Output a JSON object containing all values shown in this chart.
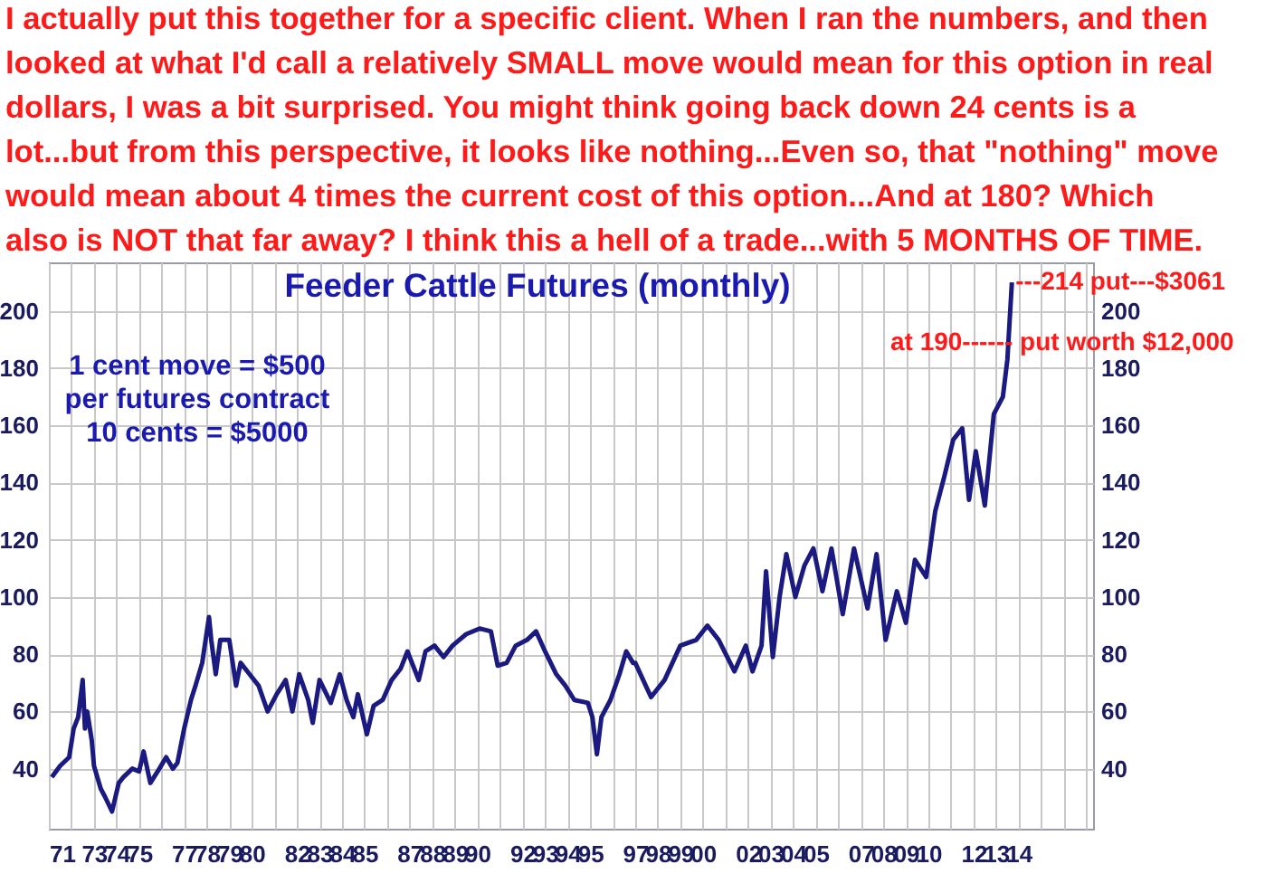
{
  "chart_data": {
    "type": "line",
    "title": "Feeder Cattle Futures (monthly)",
    "annotations": [
      "I actually put this together for a specific client. When I ran the numbers, and then\nlooked at what I'd call a relatively SMALL move would mean for this option in real\ndollars, I was a bit surprised. You might think going back down 24 cents is a\nlot...but from this perspective, it looks like nothing...Even so, that \"nothing\" move\nwould mean about 4 times the current cost of this option...And at 180? Which\nalso is NOT that far away? I think this a hell of a trade...with 5 MONTHS OF TIME.",
      "1 cent move = $500\nper futures contract\n10 cents = $5000",
      {
        "text": "---214 put---$3061",
        "x": 2013.7,
        "y": 210
      },
      {
        "text": "at 190------ put worth $12,000",
        "x": 2013.6,
        "y": 189
      }
    ],
    "x": [
      1971.13,
      1971.5,
      1971.9,
      1972.1,
      1972.3,
      1972.5,
      1972.6,
      1972.7,
      1972.9,
      1973.0,
      1973.3,
      1973.5,
      1973.8,
      1974.1,
      1974.3,
      1974.7,
      1975.0,
      1975.2,
      1975.5,
      1975.9,
      1976.2,
      1976.5,
      1976.7,
      1977.0,
      1977.3,
      1977.5,
      1977.8,
      1978.1,
      1978.2,
      1978.4,
      1978.6,
      1979.0,
      1979.3,
      1979.5,
      1979.9,
      1980.3,
      1980.7,
      1981.1,
      1981.5,
      1981.8,
      1982.1,
      1982.5,
      1982.7,
      1983.0,
      1983.5,
      1983.9,
      1984.2,
      1984.5,
      1984.7,
      1985.1,
      1985.4,
      1985.8,
      1986.2,
      1986.6,
      1986.9,
      1987.4,
      1987.7,
      1988.1,
      1988.5,
      1988.9,
      1989.5,
      1990.1,
      1990.6,
      1990.9,
      1991.3,
      1991.7,
      1992.2,
      1992.6,
      1993.0,
      1993.5,
      1993.9,
      1994.3,
      1994.9,
      1995.1,
      1995.3,
      1995.5,
      1995.9,
      1996.3,
      1996.6,
      1996.9,
      1997.0,
      1997.7,
      1998.3,
      1999.0,
      1999.7,
      2000.2,
      2000.7,
      2001.4,
      2001.9,
      2002.2,
      2002.6,
      2002.8,
      2003.1,
      2003.4,
      2003.7,
      2004.1,
      2004.5,
      2004.9,
      2005.3,
      2005.7,
      2006.2,
      2006.7,
      2007.3,
      2007.7,
      2008.1,
      2008.6,
      2009.0,
      2009.4,
      2009.9,
      2010.3,
      2010.7,
      2011.1,
      2011.5,
      2011.8,
      2012.1,
      2012.5,
      2012.9,
      2013.3,
      2013.5,
      2013.7
    ],
    "series": [
      {
        "color": "#1a1a80",
        "values": [
          37,
          41,
          44,
          54,
          58,
          71,
          54,
          60,
          50,
          41,
          33,
          30,
          25,
          35,
          37,
          40,
          39,
          46,
          35,
          40,
          44,
          40,
          42,
          54,
          64,
          69,
          77,
          93,
          85,
          73,
          85,
          85,
          69,
          77,
          73,
          69,
          60,
          66,
          71,
          60,
          73,
          64,
          56,
          71,
          63,
          73,
          64,
          58,
          66,
          52,
          62,
          64,
          71,
          75,
          81,
          71,
          81,
          83,
          79,
          83,
          87,
          89,
          88,
          76,
          77,
          83,
          85,
          88,
          81,
          73,
          69,
          64,
          63,
          58,
          45,
          58,
          64,
          73,
          81,
          77,
          77,
          65,
          71,
          83,
          85,
          90,
          85,
          74,
          83,
          74,
          83,
          109,
          79,
          100,
          115,
          100,
          111,
          117,
          102,
          117,
          94,
          117,
          96,
          115,
          85,
          102,
          91,
          113,
          107,
          130,
          142,
          155,
          159,
          134,
          151,
          132,
          164,
          170,
          183,
          210
        ]
      }
    ],
    "xlim": [
      1971,
      2017.3
    ],
    "xticks": [
      {
        "value": 1971,
        "label": "71"
      },
      {
        "value": 1972,
        "label": null
      },
      {
        "value": 1973,
        "label": "73"
      },
      {
        "value": 1974,
        "label": "74"
      },
      {
        "value": 1975,
        "label": "75"
      },
      {
        "value": 1976,
        "label": null
      },
      {
        "value": 1977,
        "label": "77"
      },
      {
        "value": 1978,
        "label": "78"
      },
      {
        "value": 1979,
        "label": "79"
      },
      {
        "value": 1980,
        "label": "80"
      },
      {
        "value": 1981,
        "label": null
      },
      {
        "value": 1982,
        "label": "82"
      },
      {
        "value": 1983,
        "label": "83"
      },
      {
        "value": 1984,
        "label": "84"
      },
      {
        "value": 1985,
        "label": "85"
      },
      {
        "value": 1986,
        "label": null
      },
      {
        "value": 1987,
        "label": "87"
      },
      {
        "value": 1988,
        "label": "88"
      },
      {
        "value": 1989,
        "label": "89"
      },
      {
        "value": 1990,
        "label": "90"
      },
      {
        "value": 1991,
        "label": null
      },
      {
        "value": 1992,
        "label": "92"
      },
      {
        "value": 1993,
        "label": "93"
      },
      {
        "value": 1994,
        "label": "94"
      },
      {
        "value": 1995,
        "label": "95"
      },
      {
        "value": 1996,
        "label": null
      },
      {
        "value": 1997,
        "label": "97"
      },
      {
        "value": 1998,
        "label": "98"
      },
      {
        "value": 1999,
        "label": "99"
      },
      {
        "value": 2000,
        "label": "00"
      },
      {
        "value": 2001,
        "label": null
      },
      {
        "value": 2002,
        "label": "02"
      },
      {
        "value": 2003,
        "label": "03"
      },
      {
        "value": 2004,
        "label": "04"
      },
      {
        "value": 2005,
        "label": "05"
      },
      {
        "value": 2006,
        "label": null
      },
      {
        "value": 2007,
        "label": "07"
      },
      {
        "value": 2008,
        "label": "08"
      },
      {
        "value": 2009,
        "label": "09"
      },
      {
        "value": 2010,
        "label": "10"
      },
      {
        "value": 2011,
        "label": null
      },
      {
        "value": 2012,
        "label": "12"
      },
      {
        "value": 2013,
        "label": "13"
      },
      {
        "value": 2014,
        "label": "14"
      },
      {
        "value": 2015,
        "label": null
      },
      {
        "value": 2016,
        "label": null
      },
      {
        "value": 2017,
        "label": null
      }
    ],
    "ylim": [
      19,
      217
    ],
    "yticks": [
      40,
      60,
      80,
      100,
      120,
      140,
      160,
      180,
      200
    ],
    "y2lim": [
      19,
      217
    ],
    "y2ticks": [
      40,
      60,
      80,
      100,
      120,
      140,
      160,
      180,
      200
    ],
    "grid": true,
    "marker": "none",
    "line_style": "solid"
  }
}
